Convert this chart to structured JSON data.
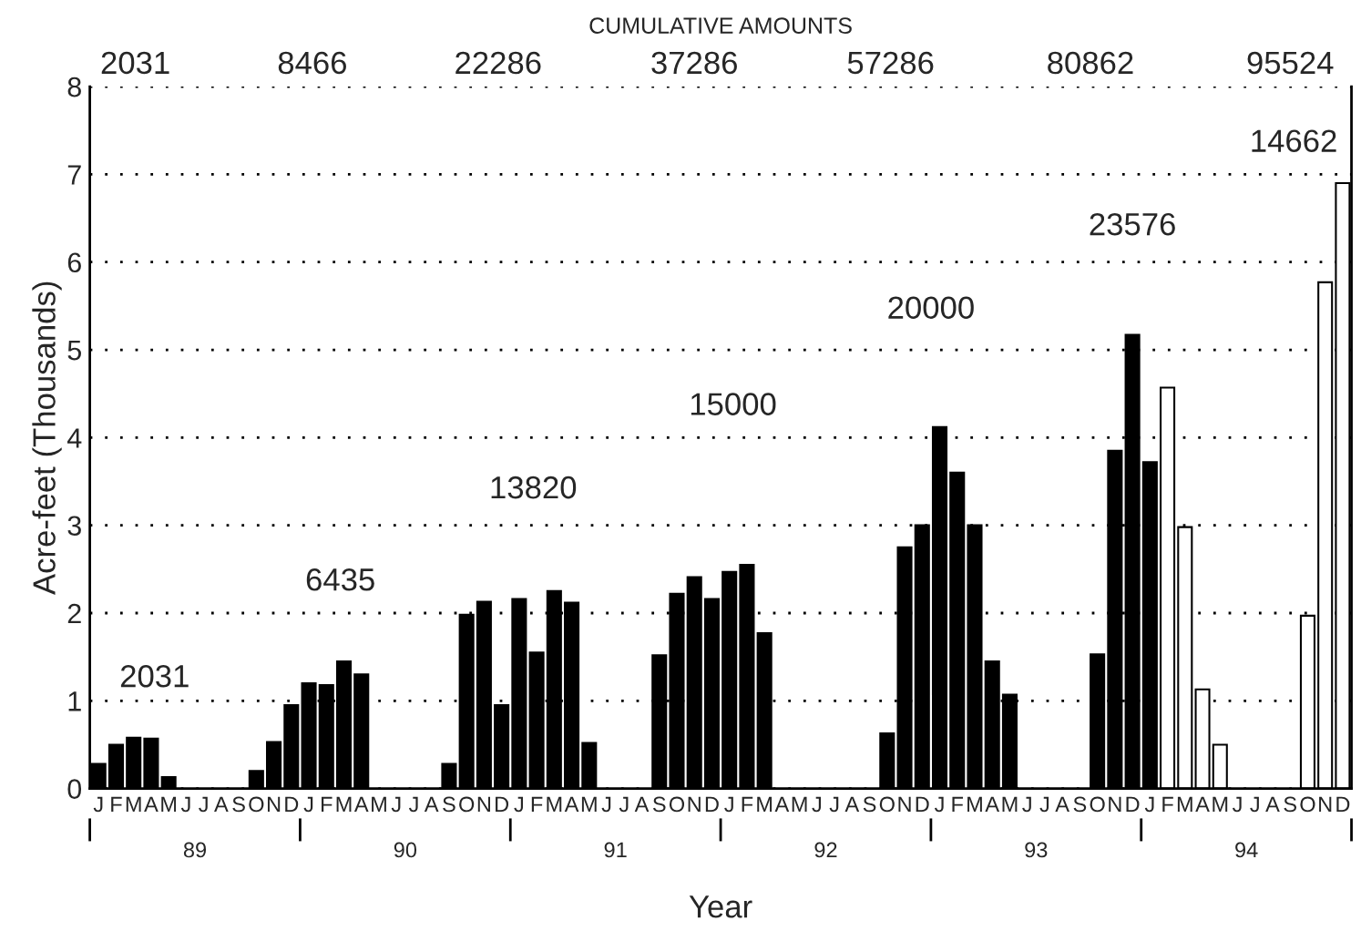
{
  "chart_data": {
    "type": "bar",
    "title": "CUMULATIVE AMOUNTS",
    "xlabel": "Year",
    "ylabel": "Acre-feet (Thousands)",
    "categories": [
      "J",
      "F",
      "M",
      "A",
      "M",
      "J",
      "J",
      "A",
      "S",
      "O",
      "N",
      "D",
      "J",
      "F",
      "M",
      "A",
      "M",
      "J",
      "J",
      "A",
      "S",
      "O",
      "N",
      "D",
      "J",
      "F",
      "M",
      "A",
      "M",
      "J",
      "J",
      "A",
      "S",
      "O",
      "N",
      "D",
      "J",
      "F",
      "M",
      "A",
      "M",
      "J",
      "J",
      "A",
      "S",
      "O",
      "N",
      "D",
      "J",
      "F",
      "M",
      "A",
      "M",
      "J",
      "J",
      "A",
      "S",
      "O",
      "N",
      "D",
      "J",
      "F",
      "M",
      "A",
      "M",
      "J",
      "J",
      "A",
      "S",
      "O",
      "N",
      "D"
    ],
    "series": [
      {
        "color": "#000000",
        "values": [
          0.28,
          0.5,
          0.58,
          0.57,
          0.13,
          null,
          null,
          null,
          null,
          0.2,
          0.53,
          0.95,
          1.2,
          1.18,
          1.45,
          1.3,
          null,
          null,
          null,
          null,
          0.28,
          1.98,
          2.13,
          0.95,
          2.16,
          1.55,
          2.25,
          2.12,
          0.52,
          null,
          null,
          null,
          1.52,
          2.22,
          2.41,
          2.16,
          2.47,
          2.55,
          1.77,
          null,
          null,
          null,
          null,
          null,
          null,
          0.63,
          2.75,
          3.0,
          4.12,
          3.6,
          3.0,
          1.45,
          1.07,
          null,
          null,
          null,
          null,
          1.53,
          3.85,
          5.17,
          3.72,
          null,
          null,
          null,
          null,
          null,
          null,
          null,
          null,
          null,
          null,
          null
        ]
      },
      {
        "color": "#ffffff",
        "values": [
          null,
          null,
          null,
          null,
          null,
          null,
          null,
          null,
          null,
          null,
          null,
          null,
          null,
          null,
          null,
          null,
          null,
          null,
          null,
          null,
          null,
          null,
          null,
          null,
          null,
          null,
          null,
          null,
          null,
          null,
          null,
          null,
          null,
          null,
          null,
          null,
          null,
          null,
          null,
          null,
          null,
          null,
          null,
          null,
          null,
          null,
          null,
          null,
          null,
          null,
          null,
          null,
          null,
          null,
          null,
          null,
          null,
          null,
          null,
          null,
          null,
          4.57,
          2.98,
          1.13,
          0.5,
          null,
          null,
          null,
          null,
          1.97,
          5.77,
          6.9
        ]
      }
    ],
    "ylim": [
      0,
      8
    ],
    "yticks": [
      0,
      1,
      2,
      3,
      4,
      5,
      6,
      7,
      8
    ],
    "grid": "y",
    "annotations": [
      "89",
      "90",
      "91",
      "92",
      "93",
      "94",
      "2031",
      "8466",
      "22286",
      "37286",
      "57286",
      "80862",
      "95524",
      "2031",
      "6435",
      "13820",
      "15000",
      "20000",
      "23576",
      "14662"
    ]
  }
}
